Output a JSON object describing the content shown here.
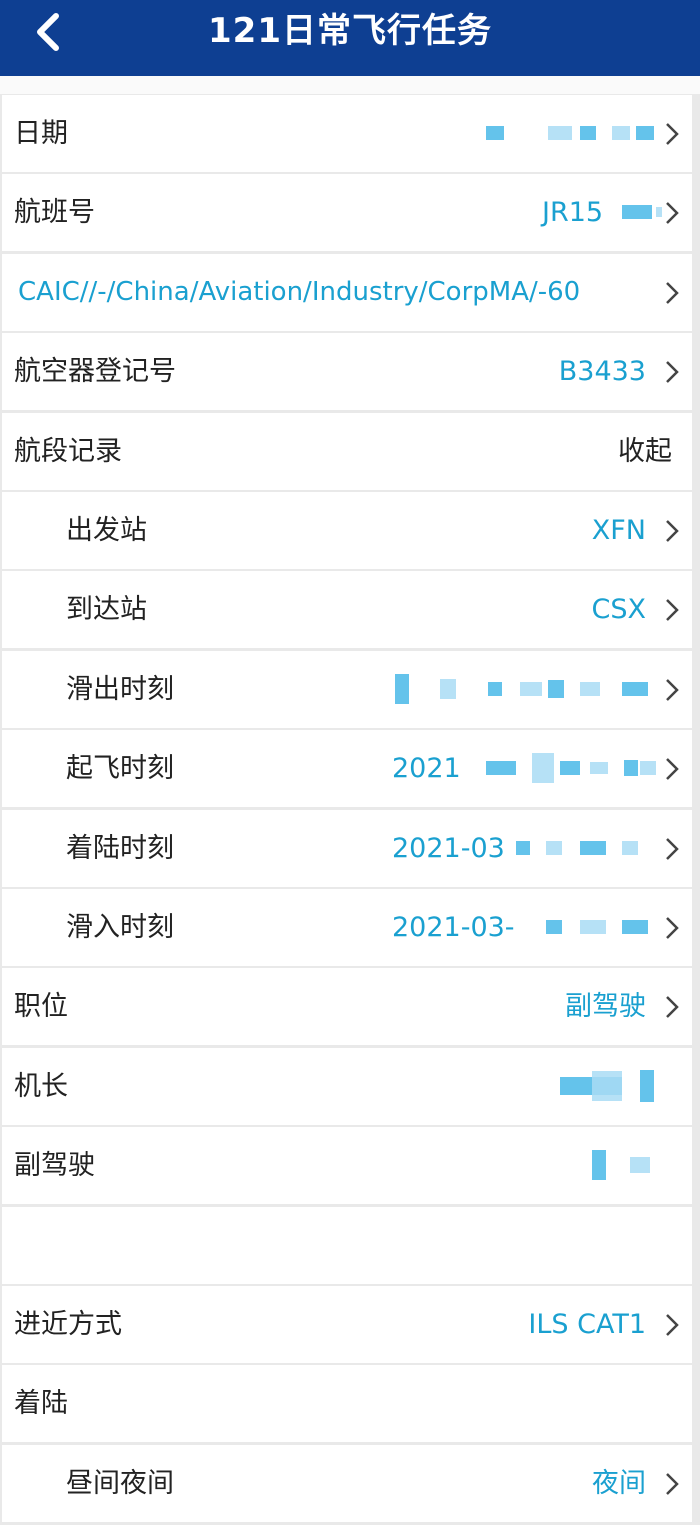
{
  "header": {
    "title": "121日常飞行任务"
  },
  "rows": [
    {
      "label": "日期"
    },
    {
      "label": "航班号",
      "value": "JR15"
    },
    {
      "value": "CAIC//-/China/Aviation/Industry/CorpMA/-60"
    },
    {
      "label": "航空器登记号",
      "value": "B3433"
    },
    {
      "label": "航段记录",
      "action": "收起"
    },
    {
      "label": "出发站",
      "value": "XFN"
    },
    {
      "label": "到达站",
      "value": "CSX"
    },
    {
      "label": "滑出时刻"
    },
    {
      "label": "起飞时刻",
      "value": "2021"
    },
    {
      "label": "着陆时刻",
      "value": "2021-03"
    },
    {
      "label": "滑入时刻",
      "value": "2021-03-"
    },
    {
      "label": "职位",
      "value": "副驾驶"
    },
    {
      "label": "机长"
    },
    {
      "label": "副驾驶"
    },
    {},
    {
      "label": "进近方式",
      "value": "ILS CAT1"
    },
    {
      "label": "着陆"
    },
    {
      "label": "昼间夜间",
      "value": "夜间"
    }
  ]
}
